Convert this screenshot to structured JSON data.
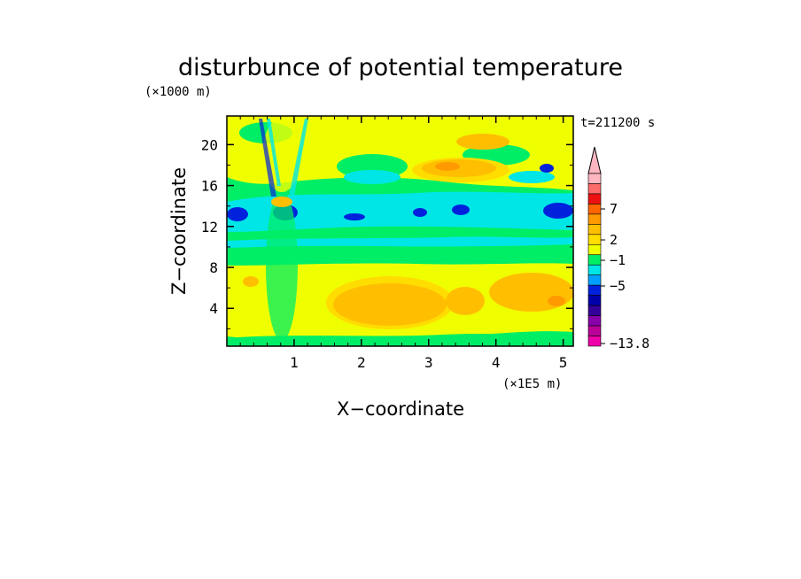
{
  "chart_data": {
    "type": "heatmap",
    "title": "disturbunce of potential temperature",
    "xlabel": "X−coordinate",
    "ylabel": "Z−coordinate",
    "x_unit": "(×1E5 m)",
    "y_unit": "(×1000 m)",
    "time_label": "t=211200 s",
    "xlim": [
      0,
      5.15
    ],
    "ylim": [
      0.3,
      22.8
    ],
    "x_ticks": [
      "1",
      "2",
      "3",
      "4",
      "5"
    ],
    "y_ticks": [
      "4",
      "8",
      "12",
      "16",
      "20"
    ],
    "colorbar": {
      "labels": [
        "7",
        "2",
        "−1",
        "−5",
        "−13.8"
      ],
      "colors": [
        "#ffb6c1",
        "#ff6a6a",
        "#ee1111",
        "#ff6600",
        "#ff9a00",
        "#ffbf00",
        "#ffdd00",
        "#f0ff00",
        "#00ee66",
        "#00e6e6",
        "#00a0ff",
        "#0022dd",
        "#0000aa",
        "#330099",
        "#8800aa",
        "#bb0099",
        "#ee00aa"
      ]
    },
    "palette": {
      "green": "#00ee66",
      "cyan": "#00e6e6",
      "yellow": "#f0ff00",
      "gold": "#ffdd00",
      "amber": "#ffbf00",
      "orange": "#ff9a00",
      "deep_orange": "#ff6600",
      "blue": "#0022dd"
    }
  }
}
